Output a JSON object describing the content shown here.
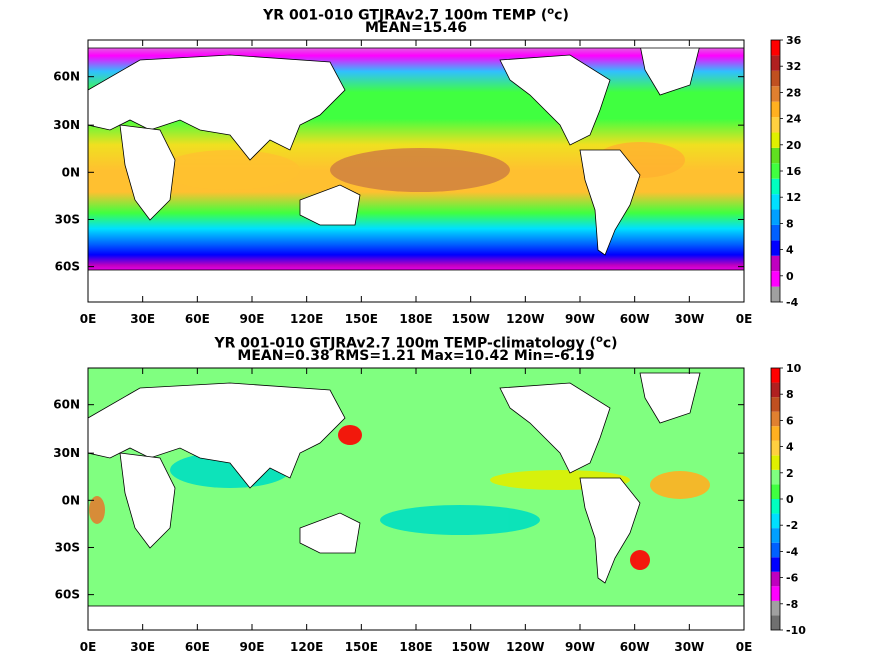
{
  "panels": [
    {
      "title_main": "YR 001-010 GTJRAv2.7 100m TEMP (",
      "title_sup": "o",
      "title_end": "c)",
      "subtitle": "MEAN=15.46",
      "colorbar": {
        "labels": [
          "36",
          "32",
          "28",
          "24",
          "20",
          "16",
          "12",
          "8",
          "4",
          "0",
          "-4"
        ],
        "colors": [
          "#a0a0a0",
          "#ff00ff",
          "#c000c0",
          "#0000ff",
          "#0060ff",
          "#00a0ff",
          "#00e0ff",
          "#00ffc0",
          "#40ff40",
          "#60e020",
          "#e0f000",
          "#ffd040",
          "#ffb020",
          "#e08030",
          "#c05020",
          "#b02020",
          "#ff0000"
        ]
      },
      "map_icon": "temperature-field-map"
    },
    {
      "title_main": "YR 001-010 GTJRAv2.7 100m TEMP-climatology (",
      "title_sup": "o",
      "title_end": "c)",
      "subtitle": "MEAN=0.38   RMS=1.21   Max=10.42   Min=-6.19",
      "colorbar": {
        "labels": [
          "10",
          "8",
          "6",
          "4",
          "2",
          "0",
          "-2",
          "-4",
          "-6",
          "-8",
          "-10"
        ],
        "colors": [
          "#707070",
          "#a0a0a0",
          "#ff00ff",
          "#c000c0",
          "#0000ff",
          "#0060ff",
          "#00a0ff",
          "#00e0ff",
          "#00ffc0",
          "#40ff40",
          "#80ff80",
          "#e0f000",
          "#ffd040",
          "#ffb020",
          "#e08030",
          "#c05020",
          "#b02020",
          "#ff0000"
        ]
      },
      "map_icon": "temperature-anomaly-map"
    }
  ],
  "axes": {
    "x_ticks": [
      "0E",
      "30E",
      "60E",
      "90E",
      "120E",
      "150E",
      "180E",
      "150W",
      "120W",
      "90W",
      "60W",
      "30W",
      "0E"
    ],
    "y_ticks": [
      "60N",
      "30N",
      "0N",
      "30S",
      "60S"
    ]
  },
  "colors": {
    "land": "#ffffff",
    "frame": "#000000"
  }
}
